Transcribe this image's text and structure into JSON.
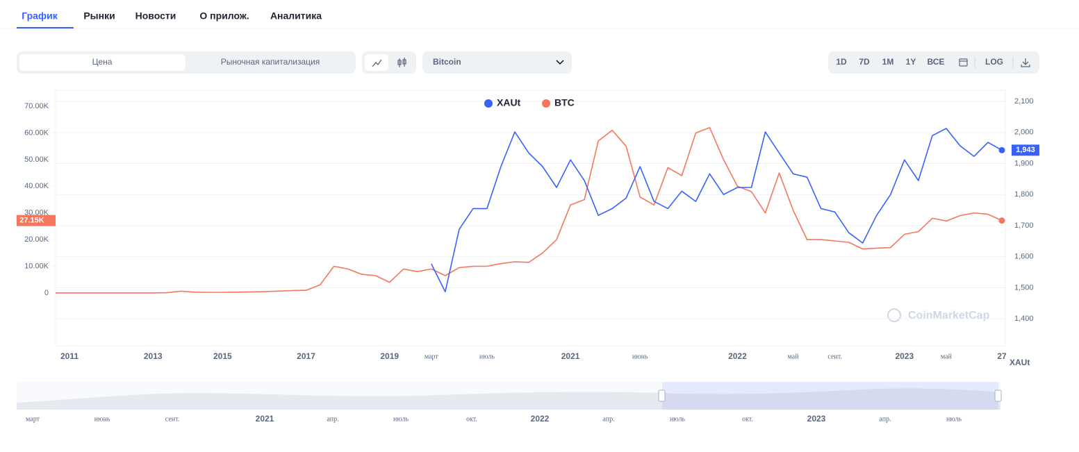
{
  "tabs": [
    "График",
    "Рынки",
    "Новости",
    "О прилож.",
    "Аналитика"
  ],
  "toggle": [
    "Цена",
    "Рыночная капитализация"
  ],
  "select": "Bitcoin",
  "ranges": [
    "1D",
    "7D",
    "1M",
    "1Y",
    "ВСЕ"
  ],
  "log_button": "LOG",
  "watermark": "CoinMarketCap",
  "navigator": {
    "labels": [
      "март",
      "июнь",
      "сент.",
      "2021",
      "апр.",
      "июль",
      "окт.",
      "2022",
      "апр.",
      "июль",
      "окт.",
      "2023",
      "апр.",
      "июль"
    ]
  },
  "chart_data": {
    "type": "line",
    "y2_label": "XAUt",
    "categories": [
      null,
      "2011",
      null,
      null,
      null,
      null,
      null,
      "2013",
      null,
      null,
      null,
      null,
      "2015",
      null,
      null,
      null,
      null,
      null,
      "2017",
      null,
      null,
      null,
      null,
      null,
      "2019",
      null,
      null,
      "март",
      null,
      null,
      null,
      "июль",
      null,
      null,
      null,
      null,
      null,
      "2021",
      null,
      null,
      null,
      null,
      "июнь",
      null,
      null,
      null,
      null,
      null,
      null,
      "2022",
      null,
      null,
      null,
      "май",
      null,
      null,
      "сент.",
      null,
      null,
      null,
      null,
      "2023",
      null,
      null,
      "май",
      null,
      null,
      null,
      "27"
    ],
    "series": [
      {
        "name": "XAUt",
        "color": "#3861fb",
        "axis": "y2",
        "values": [
          null,
          null,
          null,
          null,
          null,
          null,
          null,
          null,
          null,
          null,
          null,
          null,
          null,
          null,
          null,
          null,
          null,
          null,
          null,
          null,
          null,
          null,
          null,
          null,
          null,
          null,
          null,
          1577,
          1487,
          1688,
          1755,
          1755,
          1890,
          2002,
          1934,
          1890,
          1823,
          1912,
          1845,
          1733,
          1755,
          1789,
          1890,
          1778,
          1755,
          1811,
          1778,
          1867,
          1800,
          1823,
          1823,
          2002,
          1934,
          1867,
          1856,
          1755,
          1744,
          1677,
          1644,
          1733,
          1800,
          1912,
          1845,
          1990,
          2013,
          1957,
          1923,
          1968,
          1943
        ],
        "value_labels": [
          null,
          null,
          null,
          null,
          null,
          null,
          null,
          null,
          null,
          null,
          null,
          null,
          null,
          null,
          null,
          null,
          null,
          null,
          null,
          null,
          null,
          null,
          null,
          null,
          null,
          null,
          null,
          null,
          null,
          null,
          null,
          null,
          null,
          null,
          null,
          null,
          null,
          null,
          null,
          null,
          null,
          null,
          null,
          null,
          null,
          null,
          null,
          null,
          null,
          null,
          null,
          null,
          null,
          null,
          null,
          null,
          null,
          null,
          null,
          null,
          null,
          null,
          null,
          null,
          null,
          null,
          null,
          null,
          "1,943"
        ]
      },
      {
        "name": "BTC",
        "color": "#f6755c",
        "values": [
          0,
          0,
          0,
          0,
          0,
          0,
          0,
          0,
          100,
          700,
          300,
          250,
          250,
          300,
          400,
          500,
          700,
          900,
          1000,
          3000,
          10000,
          9000,
          7000,
          6500,
          4000,
          9000,
          8000,
          9000,
          6500,
          9500,
          10000,
          10000,
          11000,
          11700,
          11500,
          15000,
          20000,
          33000,
          35000,
          57000,
          61000,
          55000,
          36000,
          33000,
          47000,
          44000,
          60000,
          62000,
          50000,
          40000,
          38000,
          30000,
          45000,
          31000,
          20000,
          20000,
          19500,
          19000,
          16500,
          16800,
          17000,
          22000,
          23000,
          28000,
          27000,
          29000,
          30000,
          29500,
          27150
        ],
        "value_labels": [
          null,
          null,
          null,
          null,
          null,
          null,
          null,
          null,
          null,
          null,
          null,
          null,
          null,
          null,
          null,
          null,
          null,
          null,
          null,
          null,
          null,
          null,
          null,
          null,
          null,
          null,
          null,
          null,
          null,
          null,
          null,
          null,
          null,
          null,
          null,
          null,
          null,
          null,
          null,
          null,
          null,
          null,
          null,
          null,
          null,
          null,
          null,
          null,
          null,
          null,
          null,
          null,
          null,
          null,
          null,
          null,
          null,
          null,
          null,
          null,
          null,
          null,
          null,
          null,
          null,
          null,
          null,
          null,
          "27.15K"
        ]
      }
    ],
    "ylim": [
      -19800,
      76000
    ],
    "yticks": [
      0,
      {
        "value": 10000,
        "label": "10.00K"
      },
      {
        "value": 20000,
        "label": "20.00K"
      },
      {
        "value": 30000,
        "label": "30.00K"
      },
      {
        "value": 40000,
        "label": "40.00K"
      },
      {
        "value": 50000,
        "label": "50.00K"
      },
      {
        "value": 60000,
        "label": "60.00K"
      },
      {
        "value": 70000,
        "label": "70.00K"
      }
    ],
    "y2lim": [
      1313,
      2136
    ],
    "y2ticks": [
      {
        "value": 1400,
        "label": "1,400"
      },
      {
        "value": 1500,
        "label": "1,500"
      },
      {
        "value": 1600,
        "label": "1,600"
      },
      {
        "value": 1700,
        "label": "1,700"
      },
      {
        "value": 1800,
        "label": "1,800"
      },
      {
        "value": 1900,
        "label": "1,900"
      },
      {
        "value": 2000,
        "label": "2,000"
      },
      {
        "value": 2100,
        "label": "2,100"
      }
    ],
    "grid": true,
    "legend": "top"
  }
}
